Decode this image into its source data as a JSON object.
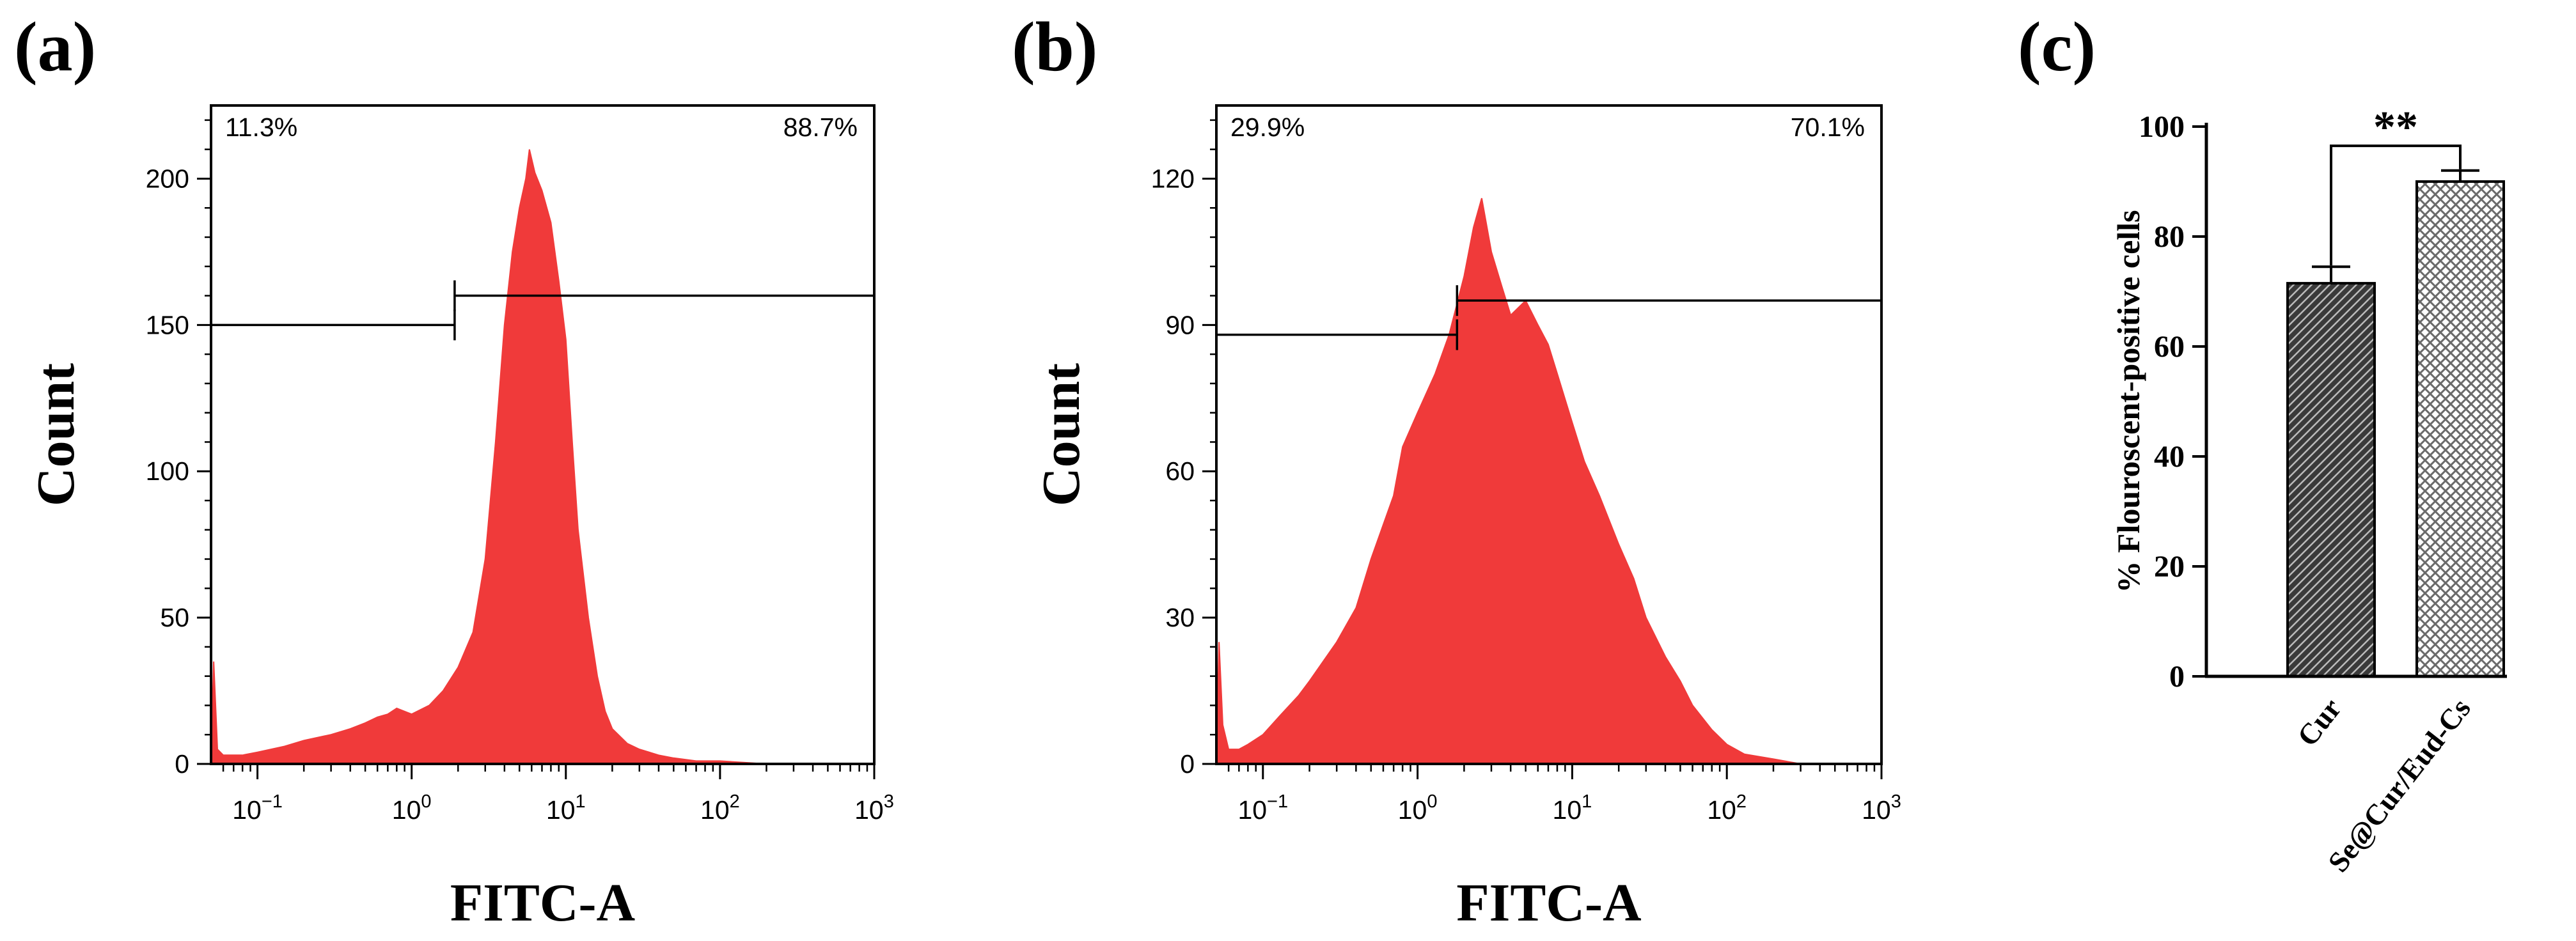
{
  "figure": {
    "panels": [
      {
        "id": "a",
        "label": "(a)"
      },
      {
        "id": "b",
        "label": "(b)"
      },
      {
        "id": "c",
        "label": "(c)"
      }
    ]
  },
  "colors": {
    "histogram_fill": "#f03a3a",
    "axis": "#000000",
    "bar_cur": "#3a3a3a",
    "bar_se": "#8a8a8a"
  },
  "chart_data": [
    {
      "panel": "(a)",
      "type": "area",
      "title": "",
      "xlabel": "FITC-A",
      "ylabel": "Count",
      "x_scale": "log10",
      "xlim": [
        0.05,
        1000
      ],
      "ylim": [
        0,
        225
      ],
      "x_ticks": [
        {
          "value": 0.1,
          "base": "10",
          "exp": "−1"
        },
        {
          "value": 1,
          "base": "10",
          "exp": "0"
        },
        {
          "value": 10,
          "base": "10",
          "exp": "1"
        },
        {
          "value": 100,
          "base": "10",
          "exp": "2"
        },
        {
          "value": 1000,
          "base": "10",
          "exp": "3"
        }
      ],
      "y_ticks": [
        {
          "value": 0,
          "label": "0"
        },
        {
          "value": 50,
          "label": "50"
        },
        {
          "value": 100,
          "label": "100"
        },
        {
          "value": 150,
          "label": "150"
        },
        {
          "value": 200,
          "label": "200"
        }
      ],
      "gate_left": {
        "from": 0.05,
        "to": 1.9,
        "level": 150,
        "label": "11.3%"
      },
      "gate_right": {
        "from": 1.9,
        "to": 1000,
        "level": 160,
        "label": "88.7%"
      },
      "series": [
        {
          "name": "FITC-A histogram",
          "x": [
            0.05,
            0.052,
            0.055,
            0.06,
            0.08,
            0.1,
            0.15,
            0.2,
            0.3,
            0.4,
            0.5,
            0.6,
            0.7,
            0.8,
            1.0,
            1.3,
            1.6,
            2.0,
            2.5,
            3.0,
            3.5,
            4.0,
            4.5,
            5.0,
            5.5,
            5.8,
            6.3,
            7.0,
            8.0,
            9.0,
            10.0,
            11.0,
            12.0,
            14.0,
            16.0,
            18.0,
            20.0,
            25.0,
            30.0,
            40.0,
            50.0,
            70.0,
            100.0,
            200.0,
            500.0,
            1000.0
          ],
          "values": [
            0,
            35,
            5,
            3,
            3,
            4,
            6,
            8,
            10,
            12,
            14,
            16,
            17,
            19,
            17,
            20,
            25,
            33,
            45,
            70,
            110,
            150,
            175,
            190,
            200,
            210,
            202,
            196,
            185,
            165,
            145,
            110,
            80,
            50,
            30,
            18,
            12,
            7,
            5,
            3,
            2,
            1,
            1,
            0,
            0,
            0
          ]
        }
      ]
    },
    {
      "panel": "(b)",
      "type": "area",
      "title": "",
      "xlabel": "FITC-A",
      "ylabel": "Count",
      "x_scale": "log10",
      "xlim": [
        0.05,
        1000
      ],
      "ylim": [
        0,
        135
      ],
      "x_ticks": [
        {
          "value": 0.1,
          "base": "10",
          "exp": "−1"
        },
        {
          "value": 1,
          "base": "10",
          "exp": "0"
        },
        {
          "value": 10,
          "base": "10",
          "exp": "1"
        },
        {
          "value": 100,
          "base": "10",
          "exp": "2"
        },
        {
          "value": 1000,
          "base": "10",
          "exp": "3"
        }
      ],
      "y_ticks": [
        {
          "value": 0,
          "label": "0"
        },
        {
          "value": 30,
          "label": "30"
        },
        {
          "value": 60,
          "label": "60"
        },
        {
          "value": 90,
          "label": "90"
        },
        {
          "value": 120,
          "label": "120"
        }
      ],
      "gate_left": {
        "from": 0.05,
        "to": 1.8,
        "level": 88,
        "label": "29.9%"
      },
      "gate_right": {
        "from": 1.8,
        "to": 1000,
        "level": 95,
        "label": "70.1%"
      },
      "series": [
        {
          "name": "FITC-A histogram",
          "x": [
            0.05,
            0.052,
            0.055,
            0.06,
            0.07,
            0.08,
            0.1,
            0.13,
            0.17,
            0.2,
            0.3,
            0.4,
            0.5,
            0.7,
            0.8,
            1.0,
            1.3,
            1.6,
            2.0,
            2.3,
            2.6,
            3.0,
            3.5,
            4.0,
            5.0,
            6.0,
            7.0,
            8.0,
            10.0,
            12.0,
            15.0,
            20.0,
            25.0,
            30.0,
            40.0,
            50.0,
            60.0,
            80.0,
            100.0,
            130.0,
            200.0,
            300.0,
            1000.0
          ],
          "values": [
            0,
            25,
            8,
            3,
            3,
            4,
            6,
            10,
            14,
            17,
            25,
            32,
            42,
            55,
            65,
            72,
            80,
            88,
            100,
            110,
            116,
            105,
            98,
            92,
            95,
            90,
            86,
            80,
            70,
            62,
            55,
            45,
            38,
            30,
            22,
            17,
            12,
            7,
            4,
            2,
            1,
            0,
            0
          ]
        }
      ]
    },
    {
      "panel": "(c)",
      "type": "bar",
      "title": "",
      "xlabel": "",
      "ylabel": "% Flouroscent-positive cells",
      "ylim": [
        0,
        100
      ],
      "y_ticks": [
        {
          "value": 0,
          "label": "0"
        },
        {
          "value": 20,
          "label": "20"
        },
        {
          "value": 40,
          "label": "40"
        },
        {
          "value": 60,
          "label": "60"
        },
        {
          "value": 80,
          "label": "80"
        },
        {
          "value": 100,
          "label": "100"
        }
      ],
      "categories": [
        "Cur",
        "Se@Cur/Eud-Cs"
      ],
      "values": [
        71.5,
        90.0
      ],
      "errors": [
        3.0,
        2.0
      ],
      "significance": {
        "between": [
          0,
          1
        ],
        "label": "**"
      }
    }
  ]
}
